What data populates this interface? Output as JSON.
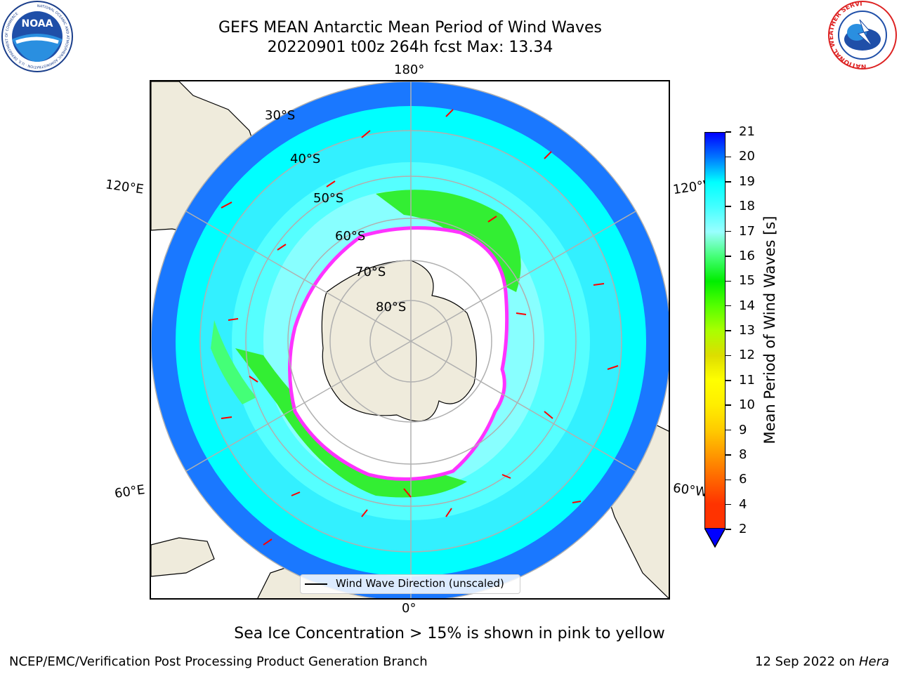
{
  "title_line1": "GEFS MEAN Antarctic Mean Period of Wind Waves",
  "title_line2": "20220901 t00z 264h fcst   Max: 13.34",
  "logos": {
    "left": {
      "name": "noaa-logo",
      "text": "NOAA",
      "ring_text": "NATIONAL OCEANIC AND ATMOSPHERIC ADMINISTRATION · U.S. DEPARTMENT OF COMMERCE"
    },
    "right": {
      "name": "nws-logo",
      "ring_text": "NATIONAL WEATHER SERVICE"
    }
  },
  "map": {
    "projection": "south-polar-stereographic",
    "longitude_labels": {
      "top": "180°",
      "bottom": "0°",
      "upper_left": "120°E",
      "upper_right": "120°W",
      "lower_left": "60°E",
      "lower_right": "60°W"
    },
    "latitude_labels": [
      "30°S",
      "40°S",
      "50°S",
      "60°S",
      "70°S",
      "80°S"
    ],
    "sea_ice_colors": [
      "#ff44ff",
      "#ff88cc",
      "#ffcc44",
      "#ffff44"
    ]
  },
  "colorbar": {
    "label": "Mean Period of Wind Waves [s]",
    "ticks": [
      "2",
      "4",
      "6",
      "8",
      "9",
      "10",
      "11",
      "12",
      "13",
      "14",
      "15",
      "16",
      "17",
      "18",
      "19",
      "20",
      "21"
    ],
    "colors": [
      "#0000ff",
      "#0077ff",
      "#00ffff",
      "#44ffff",
      "#99ffff",
      "#44ff77",
      "#00ee00",
      "#55ff00",
      "#aaff00",
      "#dddd00",
      "#ffff00",
      "#ffee00",
      "#ffcc00",
      "#ff9900",
      "#ff6600",
      "#ff3300",
      "#ff0000"
    ],
    "extend": "min"
  },
  "legend": {
    "label": "Wind Wave Direction (unscaled)"
  },
  "sea_ice_note": "Sea Ice Concentration > 15% is shown in pink to yellow",
  "footer": {
    "left": "NCEP/EMC/Verification Post Processing Product Generation Branch",
    "right_prefix": "12 Sep 2022 on ",
    "right_host": "Hera"
  },
  "colors": {
    "land": "#efebdc",
    "ocean_blue": "#1a78ff",
    "ocean_cyan": "#00ffff",
    "ocean_light": "#55ffff",
    "green": "#33ee33",
    "ice_edge": "#ff33ff",
    "arrow": "#ff0000",
    "grid": "#b0b0b0"
  }
}
